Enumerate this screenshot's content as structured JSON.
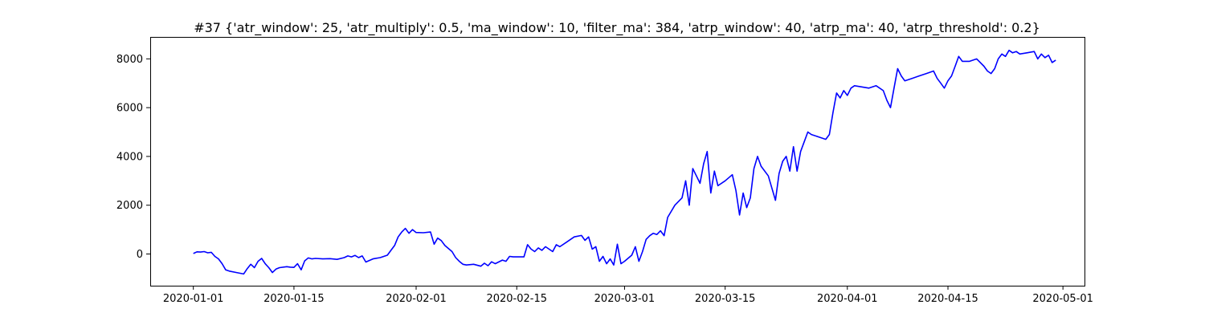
{
  "chart_data": {
    "type": "line",
    "title": "#37 {'atr_window': 25, 'atr_multiply': 0.5, 'ma_window': 10, 'filter_ma': 384, 'atrp_window': 40, 'atrp_ma': 40, 'atrp_threshold': 0.2}",
    "xlabel": "",
    "ylabel": "",
    "x_type": "date",
    "xlim": [
      "2019-12-26",
      "2020-05-04"
    ],
    "ylim": [
      -1300,
      8900
    ],
    "x_ticks": [
      "2020-01-01",
      "2020-01-15",
      "2020-02-01",
      "2020-02-15",
      "2020-03-01",
      "2020-03-15",
      "2020-04-01",
      "2020-04-15",
      "2020-05-01"
    ],
    "y_ticks": [
      0,
      2000,
      4000,
      6000,
      8000
    ],
    "grid": false,
    "legend": "none",
    "series_color": "#0000ff",
    "series": [
      {
        "points": [
          [
            "2020-01-01",
            20
          ],
          [
            "2020-01-01T12:00",
            90
          ],
          [
            "2020-01-02",
            80
          ],
          [
            "2020-01-02T12:00",
            100
          ],
          [
            "2020-01-03",
            50
          ],
          [
            "2020-01-03T12:00",
            70
          ],
          [
            "2020-01-04",
            -100
          ],
          [
            "2020-01-04T12:00",
            -200
          ],
          [
            "2020-01-05",
            -400
          ],
          [
            "2020-01-05T12:00",
            -650
          ],
          [
            "2020-01-06",
            -700
          ],
          [
            "2020-01-07",
            -760
          ],
          [
            "2020-01-08",
            -820
          ],
          [
            "2020-01-08T12:00",
            -600
          ],
          [
            "2020-01-09",
            -420
          ],
          [
            "2020-01-09T12:00",
            -560
          ],
          [
            "2020-01-10",
            -300
          ],
          [
            "2020-01-10T12:00",
            -180
          ],
          [
            "2020-01-11",
            -400
          ],
          [
            "2020-01-11T12:00",
            -560
          ],
          [
            "2020-01-12",
            -760
          ],
          [
            "2020-01-12T12:00",
            -620
          ],
          [
            "2020-01-13",
            -560
          ],
          [
            "2020-01-14",
            -520
          ],
          [
            "2020-01-14T12:00",
            -540
          ],
          [
            "2020-01-15",
            -550
          ],
          [
            "2020-01-15T12:00",
            -400
          ],
          [
            "2020-01-16",
            -650
          ],
          [
            "2020-01-16T12:00",
            -280
          ],
          [
            "2020-01-17",
            -160
          ],
          [
            "2020-01-17T12:00",
            -200
          ],
          [
            "2020-01-18",
            -180
          ],
          [
            "2020-01-19",
            -200
          ],
          [
            "2020-01-20",
            -190
          ],
          [
            "2020-01-21",
            -220
          ],
          [
            "2020-01-22",
            -150
          ],
          [
            "2020-01-22T12:00",
            -80
          ],
          [
            "2020-01-23",
            -120
          ],
          [
            "2020-01-23T12:00",
            -60
          ],
          [
            "2020-01-24",
            -150
          ],
          [
            "2020-01-24T12:00",
            -80
          ],
          [
            "2020-01-25",
            -330
          ],
          [
            "2020-01-26",
            -200
          ],
          [
            "2020-01-27",
            -150
          ],
          [
            "2020-01-28",
            -50
          ],
          [
            "2020-01-28T12:00",
            150
          ],
          [
            "2020-01-29",
            350
          ],
          [
            "2020-01-29T12:00",
            700
          ],
          [
            "2020-01-30",
            900
          ],
          [
            "2020-01-30T12:00",
            1050
          ],
          [
            "2020-01-31",
            850
          ],
          [
            "2020-01-31T12:00",
            1000
          ],
          [
            "2020-02-01",
            880
          ],
          [
            "2020-02-02",
            870
          ],
          [
            "2020-02-03",
            900
          ],
          [
            "2020-02-03T12:00",
            400
          ],
          [
            "2020-02-04",
            650
          ],
          [
            "2020-02-04T12:00",
            550
          ],
          [
            "2020-02-05",
            350
          ],
          [
            "2020-02-06",
            100
          ],
          [
            "2020-02-06T12:00",
            -150
          ],
          [
            "2020-02-07",
            -300
          ],
          [
            "2020-02-07T12:00",
            -420
          ],
          [
            "2020-02-08",
            -450
          ],
          [
            "2020-02-09",
            -420
          ],
          [
            "2020-02-10",
            -500
          ],
          [
            "2020-02-10T12:00",
            -380
          ],
          [
            "2020-02-11",
            -480
          ],
          [
            "2020-02-11T12:00",
            -320
          ],
          [
            "2020-02-12",
            -400
          ],
          [
            "2020-02-13",
            -250
          ],
          [
            "2020-02-13T12:00",
            -300
          ],
          [
            "2020-02-14",
            -100
          ],
          [
            "2020-02-14T12:00",
            -120
          ],
          [
            "2020-02-16",
            -120
          ],
          [
            "2020-02-16T12:00",
            380
          ],
          [
            "2020-02-17",
            200
          ],
          [
            "2020-02-17T12:00",
            100
          ],
          [
            "2020-02-18",
            250
          ],
          [
            "2020-02-18T12:00",
            150
          ],
          [
            "2020-02-19",
            300
          ],
          [
            "2020-02-20",
            100
          ],
          [
            "2020-02-20T12:00",
            380
          ],
          [
            "2020-02-21",
            300
          ],
          [
            "2020-02-22",
            500
          ],
          [
            "2020-02-23",
            700
          ],
          [
            "2020-02-24",
            760
          ],
          [
            "2020-02-24T12:00",
            560
          ],
          [
            "2020-02-25",
            700
          ],
          [
            "2020-02-25T12:00",
            200
          ],
          [
            "2020-02-26",
            300
          ],
          [
            "2020-02-26T12:00",
            -300
          ],
          [
            "2020-02-27",
            -100
          ],
          [
            "2020-02-27T12:00",
            -400
          ],
          [
            "2020-02-28",
            -200
          ],
          [
            "2020-02-28T12:00",
            -450
          ],
          [
            "2020-02-29",
            400
          ],
          [
            "2020-02-29T12:00",
            -400
          ],
          [
            "2020-03-01",
            -300
          ],
          [
            "2020-03-02",
            -50
          ],
          [
            "2020-03-02T12:00",
            300
          ],
          [
            "2020-03-03",
            -300
          ],
          [
            "2020-03-03T12:00",
            100
          ],
          [
            "2020-03-04",
            600
          ],
          [
            "2020-03-04T12:00",
            750
          ],
          [
            "2020-03-05",
            850
          ],
          [
            "2020-03-05T12:00",
            800
          ],
          [
            "2020-03-06",
            950
          ],
          [
            "2020-03-06T12:00",
            750
          ],
          [
            "2020-03-07",
            1500
          ],
          [
            "2020-03-08",
            2000
          ],
          [
            "2020-03-09",
            2300
          ],
          [
            "2020-03-09T12:00",
            3000
          ],
          [
            "2020-03-10",
            2000
          ],
          [
            "2020-03-10T12:00",
            3500
          ],
          [
            "2020-03-11",
            3200
          ],
          [
            "2020-03-11T12:00",
            2900
          ],
          [
            "2020-03-12",
            3700
          ],
          [
            "2020-03-12T12:00",
            4200
          ],
          [
            "2020-03-13",
            2500
          ],
          [
            "2020-03-13T12:00",
            3400
          ],
          [
            "2020-03-14",
            2800
          ],
          [
            "2020-03-15",
            3000
          ],
          [
            "2020-03-16",
            3250
          ],
          [
            "2020-03-16T12:00",
            2600
          ],
          [
            "2020-03-17",
            1600
          ],
          [
            "2020-03-17T12:00",
            2500
          ],
          [
            "2020-03-18",
            1900
          ],
          [
            "2020-03-18T12:00",
            2300
          ],
          [
            "2020-03-19",
            3500
          ],
          [
            "2020-03-19T12:00",
            4000
          ],
          [
            "2020-03-20",
            3600
          ],
          [
            "2020-03-21",
            3200
          ],
          [
            "2020-03-22",
            2200
          ],
          [
            "2020-03-22T12:00",
            3300
          ],
          [
            "2020-03-23",
            3800
          ],
          [
            "2020-03-23T12:00",
            4000
          ],
          [
            "2020-03-24",
            3400
          ],
          [
            "2020-03-24T12:00",
            4400
          ],
          [
            "2020-03-25",
            3400
          ],
          [
            "2020-03-25T12:00",
            4200
          ],
          [
            "2020-03-26",
            4600
          ],
          [
            "2020-03-26T12:00",
            5000
          ],
          [
            "2020-03-27",
            4900
          ],
          [
            "2020-03-28",
            4800
          ],
          [
            "2020-03-29",
            4700
          ],
          [
            "2020-03-29T12:00",
            4900
          ],
          [
            "2020-03-30",
            5800
          ],
          [
            "2020-03-30T12:00",
            6600
          ],
          [
            "2020-03-31",
            6400
          ],
          [
            "2020-03-31T12:00",
            6700
          ],
          [
            "2020-04-01",
            6500
          ],
          [
            "2020-04-01T12:00",
            6800
          ],
          [
            "2020-04-02",
            6900
          ],
          [
            "2020-04-03",
            6850
          ],
          [
            "2020-04-04",
            6800
          ],
          [
            "2020-04-05",
            6900
          ],
          [
            "2020-04-06",
            6700
          ],
          [
            "2020-04-06T12:00",
            6300
          ],
          [
            "2020-04-07",
            6000
          ],
          [
            "2020-04-07T12:00",
            6800
          ],
          [
            "2020-04-08",
            7600
          ],
          [
            "2020-04-08T12:00",
            7300
          ],
          [
            "2020-04-09",
            7100
          ],
          [
            "2020-04-10",
            7200
          ],
          [
            "2020-04-11",
            7300
          ],
          [
            "2020-04-12",
            7400
          ],
          [
            "2020-04-13",
            7500
          ],
          [
            "2020-04-13T12:00",
            7200
          ],
          [
            "2020-04-14",
            7000
          ],
          [
            "2020-04-14T12:00",
            6800
          ],
          [
            "2020-04-15",
            7100
          ],
          [
            "2020-04-15T12:00",
            7300
          ],
          [
            "2020-04-16",
            7700
          ],
          [
            "2020-04-16T12:00",
            8100
          ],
          [
            "2020-04-17",
            7900
          ],
          [
            "2020-04-18",
            7900
          ],
          [
            "2020-04-19",
            8000
          ],
          [
            "2020-04-20",
            7700
          ],
          [
            "2020-04-20T12:00",
            7500
          ],
          [
            "2020-04-21",
            7400
          ],
          [
            "2020-04-21T12:00",
            7600
          ],
          [
            "2020-04-22",
            8000
          ],
          [
            "2020-04-22T12:00",
            8200
          ],
          [
            "2020-04-23",
            8100
          ],
          [
            "2020-04-23T12:00",
            8350
          ],
          [
            "2020-04-24",
            8250
          ],
          [
            "2020-04-24T12:00",
            8300
          ],
          [
            "2020-04-25",
            8200
          ],
          [
            "2020-04-26",
            8250
          ],
          [
            "2020-04-27",
            8300
          ],
          [
            "2020-04-27T12:00",
            8000
          ],
          [
            "2020-04-28",
            8200
          ],
          [
            "2020-04-28T12:00",
            8050
          ],
          [
            "2020-04-29",
            8150
          ],
          [
            "2020-04-29T12:00",
            7850
          ],
          [
            "2020-04-30",
            7950
          ]
        ]
      }
    ]
  }
}
